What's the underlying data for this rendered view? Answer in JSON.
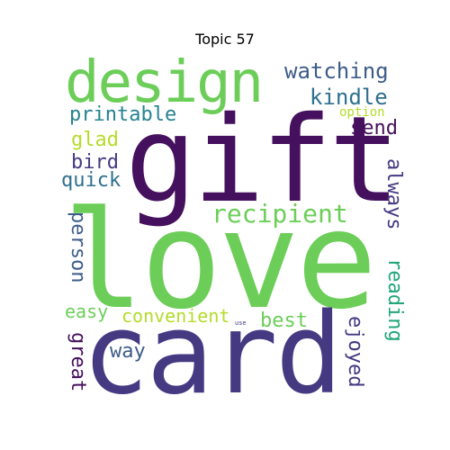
{
  "figure": {
    "title": "Topic 57"
  },
  "words": {
    "gift": "gift",
    "love": "love",
    "card": "card",
    "design": "design",
    "recipient": "recipient",
    "watching": "watching",
    "kindle": "kindle",
    "printable": "printable",
    "option": "option",
    "send": "send",
    "glad": "glad",
    "bird": "bird",
    "quick": "quick",
    "always": "always",
    "person": "person",
    "reading": "reading",
    "easy": "easy",
    "convenient": "convenient",
    "best": "best",
    "great": "great",
    "way": "way",
    "ejoyed": "ejoyed",
    "use": "use"
  },
  "colors": {
    "dark_purple": "#45105d",
    "indigo": "#453a82",
    "slate_blue": "#3e5c8a",
    "teal_blue": "#2f708e",
    "teal": "#26838f",
    "green_teal": "#22a57a",
    "green": "#6cce59",
    "lime": "#b3dc2b"
  }
}
